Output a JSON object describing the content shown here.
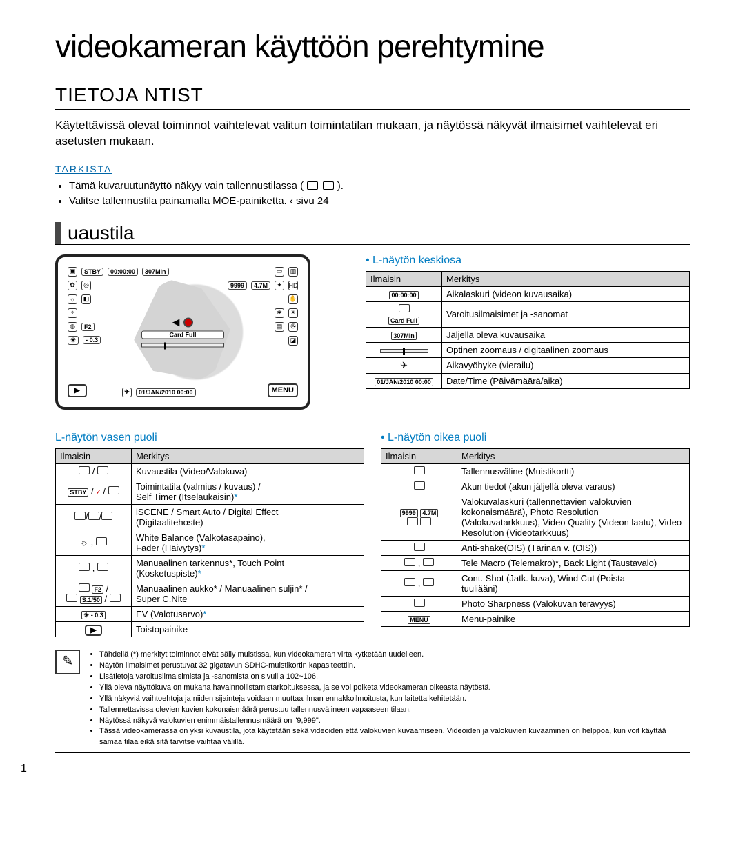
{
  "title_main": "videokameran käyttöön perehtymine",
  "section_title": "TIETOJA NTIST",
  "intro": "Käytettävissä olevat toiminnot vaihtelevat valitun toimintatilan mukaan, ja näytössä näkyvät ilmaisimet vaihtelevat eri asetusten mukaan.",
  "check_label": "TARKISTA",
  "check_items": [
    "Tämä kuvaruutunäyttö näkyy vain tallennustilassa (",
    "Valitse tallennustila painamalla MOE-painiketta.   ‹ sivu 24"
  ],
  "mode_heading": "uaustila",
  "lcd": {
    "stby": "STBY",
    "timer": "00:00:00",
    "minleft": "307Min",
    "cardfull": "Card Full",
    "photos": "9999",
    "res": "4.7M",
    "f": "F2",
    "ev": "- 0.3",
    "ev_pref": "☀",
    "shutter": "S.1/50",
    "date": "01/JAN/2010 00:00",
    "menu": "MENU"
  },
  "mid": {
    "heading": "L-näytön keskiosa",
    "col1": "Ilmaisin",
    "col2": "Merkitys",
    "rows": [
      {
        "ic": "00:00:00",
        "txt": "Aikalaskuri (videon kuvausaika)"
      },
      {
        "ic": "card",
        "txt": "Varoitusilmaisimet ja -sanomat",
        "sub": "Card Full"
      },
      {
        "ic": "307Min",
        "txt": "Jäljellä oleva kuvausaika"
      },
      {
        "ic": "zoom",
        "txt": "Optinen zoomaus / digitaalinen zoomaus"
      },
      {
        "ic": "plane",
        "txt": "Aikavyöhyke (vierailu)"
      },
      {
        "ic": "01/JAN/2010 00:00",
        "txt": "Date/Time (Päivämäärä/aika)"
      }
    ]
  },
  "left": {
    "heading": "L-näytön vasen puoli",
    "col1": "Ilmaisin",
    "col2": "Merkitys",
    "rows": [
      {
        "ic": "vidphoto",
        "txt": "Kuvaustila (Video/Valokuva)"
      },
      {
        "ic": "stby",
        "txt1": "Toimintatila (valmius / kuvaus) /",
        "txt2": "Self Timer (Itselaukaisin)",
        "star": true
      },
      {
        "ic": "scene",
        "txt1": "iSCENE / Smart Auto / Digital Effect",
        "txt2": "(Digitaalitehoste)"
      },
      {
        "ic": "wb",
        "txt1": "White Balance (Valkotasapaino),",
        "txt2": "Fader (Häivytys)",
        "star": true
      },
      {
        "ic": "focus",
        "txt1": "Manuaalinen tarkennus*, Touch Point",
        "txt2": "(Kosketuspiste)",
        "star": true
      },
      {
        "ic": "aperture",
        "txt1": "Manuaalinen aukko* / Manuaalinen suljin* /",
        "txt2": "Super C.Nite"
      },
      {
        "ic": "ev",
        "txt": "EV (Valotusarvo)",
        "star": true
      },
      {
        "ic": "play",
        "txt": "Toistopainike"
      }
    ]
  },
  "right": {
    "heading": "L-näytön oikea puoli",
    "col1": "Ilmaisin",
    "col2": "Merkitys",
    "rows": [
      {
        "ic": "card2",
        "txt": "Tallennusväline (Muistikortti)"
      },
      {
        "ic": "batt",
        "txt": "Akun tiedot (akun jäljellä oleva varaus)"
      },
      {
        "ic": "multi",
        "txt1": "Valokuvalaskuri (tallennettavien valokuvien kokonaismäärä), Photo Resolution",
        "txt2": "(Valokuvatarkkuus), Video Quality (Videon laatu), Video Resolution (Videotarkkuus)"
      },
      {
        "ic": "ois",
        "txt": "Anti-shake(OIS) (Tärinän v. (OIS))"
      },
      {
        "ic": "tele",
        "txt": "Tele Macro (Telemakro)*, Back Light (Taustavalo)"
      },
      {
        "ic": "cont",
        "txt1": "Cont. Shot (Jatk. kuva), Wind Cut (Poista",
        "txt2": "tuuliääni)"
      },
      {
        "ic": "sharp",
        "txt": "Photo Sharpness (Valokuvan terävyys)"
      },
      {
        "ic": "menu",
        "txt": "Menu-painike"
      }
    ]
  },
  "notes": [
    "Tähdellä (*) merkityt toiminnot eivät säily muistissa, kun videokameran virta kytketään uudelleen.",
    "Näytön ilmaisimet perustuvat 32 gigatavun SDHC-muistikortin kapasiteettiin.",
    "Lisätietoja varoitusilmaisimista ja -sanomista on sivuilla 102~106.",
    "Yllä oleva näyttökuva on mukana havainnollistamistarkoituksessa, ja se voi poiketa videokameran oikeasta näytöstä.",
    "Yllä näkyviä vaihtoehtoja ja niiden sijainteja voidaan muuttaa ilman ennakkoilmoitusta, kun laitetta kehitetään.",
    "Tallennettavissa olevien kuvien kokonaismäärä perustuu tallennusvälineen vapaaseen tilaan.",
    "Näytössä näkyvä valokuvien enimmäistallennusmäärä on \"9,999\".",
    "Tässä videokamerassa on yksi kuvaustila, jota käytetään sekä videoiden että valokuvien kuvaamiseen. Videoiden ja valokuvien kuvaaminen on helppoa, kun voit käyttää samaa tilaa eikä sitä tarvitse vaihtaa välillä."
  ],
  "page_number": "1"
}
